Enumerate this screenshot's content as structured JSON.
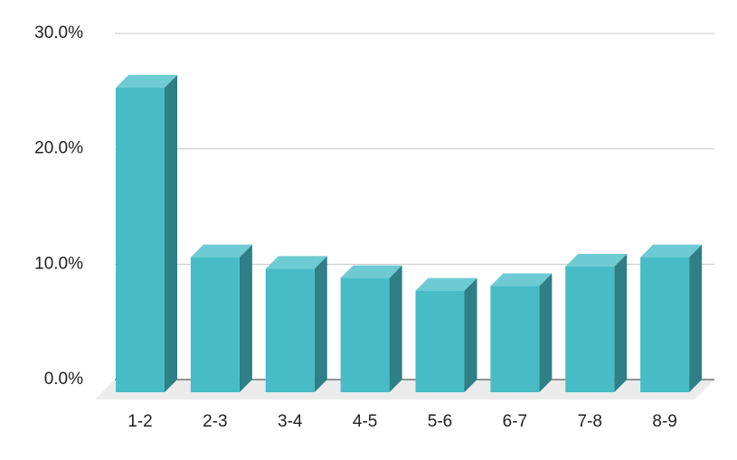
{
  "chart_data": {
    "type": "bar3d",
    "categories": [
      "1-2",
      "2-3",
      "3-4",
      "4-5",
      "5-6",
      "6-7",
      "7-8",
      "8-9"
    ],
    "values": [
      26.4,
      11.7,
      10.7,
      9.9,
      8.8,
      9.2,
      10.9,
      11.7
    ],
    "colors": {
      "front": "#47bcc7",
      "top": "#6fcbd3",
      "side": "#2e7f86"
    },
    "ylim": [
      0,
      30
    ],
    "yticks": [
      {
        "value": 0,
        "label": "0.0%"
      },
      {
        "value": 10,
        "label": "10.0%"
      },
      {
        "value": 20,
        "label": "20.0%"
      },
      {
        "value": 30,
        "label": "30.0%"
      }
    ],
    "grid": true
  }
}
